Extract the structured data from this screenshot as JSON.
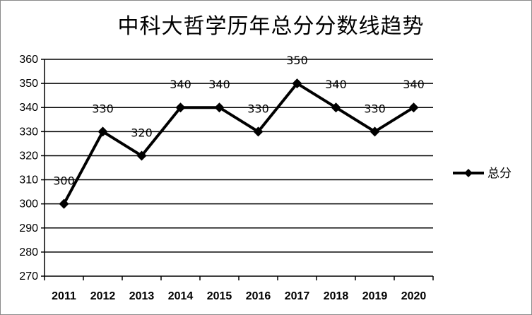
{
  "chart_data": {
    "type": "line",
    "title": "中科大哲学历年总分分数线趋势",
    "categories": [
      "2011",
      "2012",
      "2013",
      "2014",
      "2015",
      "2016",
      "2017",
      "2018",
      "2019",
      "2020"
    ],
    "series": [
      {
        "name": "总分",
        "values": [
          300,
          330,
          320,
          340,
          340,
          330,
          350,
          340,
          330,
          340
        ],
        "color": "#000000",
        "marker": "diamond"
      }
    ],
    "yticks": [
      270,
      280,
      290,
      300,
      310,
      320,
      330,
      340,
      350,
      360
    ],
    "ylim": [
      270,
      360
    ],
    "xlabel": "",
    "ylabel": "",
    "grid": true,
    "legend": "right"
  }
}
